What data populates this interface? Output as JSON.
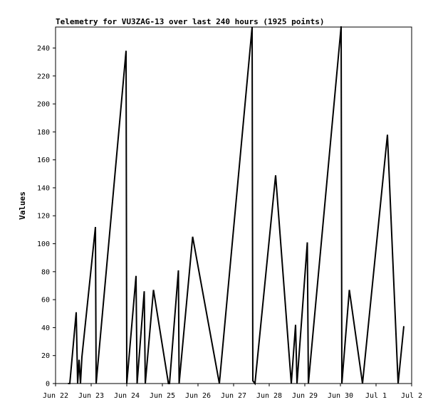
{
  "chart_data": {
    "type": "line",
    "title": "Telemetry for VU3ZAG-13 over last 240 hours (1925 points)",
    "xlabel": "",
    "ylabel": "Values",
    "x_ticks": [
      "Jun 22",
      "Jun 23",
      "Jun 24",
      "Jun 25",
      "Jun 26",
      "Jun 27",
      "Jun 28",
      "Jun 29",
      "Jun 30",
      "Jul 1",
      "Jul 2"
    ],
    "xlim_days": [
      0,
      10
    ],
    "ylim": [
      0,
      255
    ],
    "y_ticks": [
      0,
      20,
      40,
      60,
      80,
      100,
      120,
      140,
      160,
      180,
      200,
      220,
      240
    ],
    "grid": false,
    "legend": "none",
    "line_color": "#000000",
    "series": [
      {
        "x_days": [
          0.35,
          0.4,
          0.58,
          0.62,
          0.66,
          0.7,
          0.74,
          1.12,
          1.14,
          1.98,
          2.0,
          2.26,
          2.29,
          2.49,
          2.52,
          2.75,
          3.17,
          3.2,
          3.45,
          3.47,
          3.85,
          4.6,
          5.52,
          5.54,
          5.6,
          6.18,
          6.62,
          6.74,
          6.78,
          7.07,
          7.1,
          8.02,
          8.04,
          8.25,
          8.62,
          9.32,
          9.62,
          9.78
        ],
        "values": [
          0,
          0,
          51,
          0,
          17,
          0,
          19,
          112,
          0,
          238,
          0,
          77,
          0,
          66,
          0,
          67,
          0,
          0,
          81,
          0,
          105,
          0,
          255,
          2,
          0,
          149,
          0,
          42,
          0,
          101,
          0,
          257,
          0,
          67,
          0,
          178,
          0,
          41
        ]
      }
    ]
  }
}
